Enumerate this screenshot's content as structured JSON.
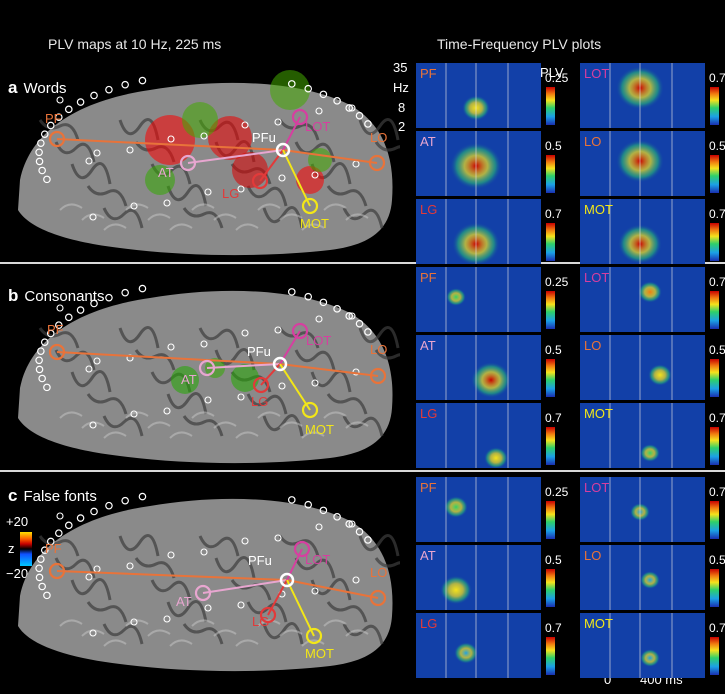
{
  "headers": {
    "left": "PLV maps at 10 Hz, 225 ms",
    "right": "Time-Frequency PLV plots"
  },
  "panels": [
    {
      "letter": "a",
      "title": "Words"
    },
    {
      "letter": "b",
      "title": "Consonants"
    },
    {
      "letter": "c",
      "title": "False fonts"
    }
  ],
  "brain_labels": {
    "pf": "PF",
    "pfu": "PFu",
    "lot": "LOT",
    "at": "AT",
    "lg": "LG",
    "mot": "MOT",
    "lo": "LO"
  },
  "z_scale": {
    "label": "z",
    "max": "+20",
    "min": "−20"
  },
  "tf_axis": {
    "freqs": [
      "35",
      "Hz",
      "8",
      "2"
    ],
    "plv": "PLV",
    "t0": "0",
    "t1": "400 ms"
  },
  "tf_cells": {
    "row0": [
      {
        "label": "PF",
        "color": "#e8733a",
        "scale": "0.25"
      },
      {
        "label": "LOT",
        "color": "#d63fa0",
        "scale": "0.7"
      },
      {
        "label": "AT",
        "color": "#e8a6d0",
        "scale": "0.5"
      },
      {
        "label": "LO",
        "color": "#e8733a",
        "scale": "0.5"
      },
      {
        "label": "LG",
        "color": "#e23a3a",
        "scale": "0.7"
      },
      {
        "label": "MOT",
        "color": "#f2e618",
        "scale": "0.7"
      }
    ],
    "row1": [
      {
        "label": "PF",
        "color": "#e8733a",
        "scale": "0.25"
      },
      {
        "label": "LOT",
        "color": "#d63fa0",
        "scale": "0.7"
      },
      {
        "label": "AT",
        "color": "#e8a6d0",
        "scale": "0.5"
      },
      {
        "label": "LO",
        "color": "#e8733a",
        "scale": "0.5"
      },
      {
        "label": "LG",
        "color": "#e23a3a",
        "scale": "0.7"
      },
      {
        "label": "MOT",
        "color": "#f2e618",
        "scale": "0.7"
      }
    ],
    "row2": [
      {
        "label": "PF",
        "color": "#e8733a",
        "scale": "0.25"
      },
      {
        "label": "LOT",
        "color": "#d63fa0",
        "scale": "0.7"
      },
      {
        "label": "AT",
        "color": "#e8a6d0",
        "scale": "0.5"
      },
      {
        "label": "LO",
        "color": "#e8733a",
        "scale": "0.5"
      },
      {
        "label": "LG",
        "color": "#e23a3a",
        "scale": "0.7"
      },
      {
        "label": "MOT",
        "color": "#f2e618",
        "scale": "0.7"
      }
    ]
  },
  "colors": {
    "orange": "#e8733a",
    "magenta": "#d63fa0",
    "pink": "#e8a6d0",
    "red": "#e23a3a",
    "yellow": "#f2e618"
  }
}
